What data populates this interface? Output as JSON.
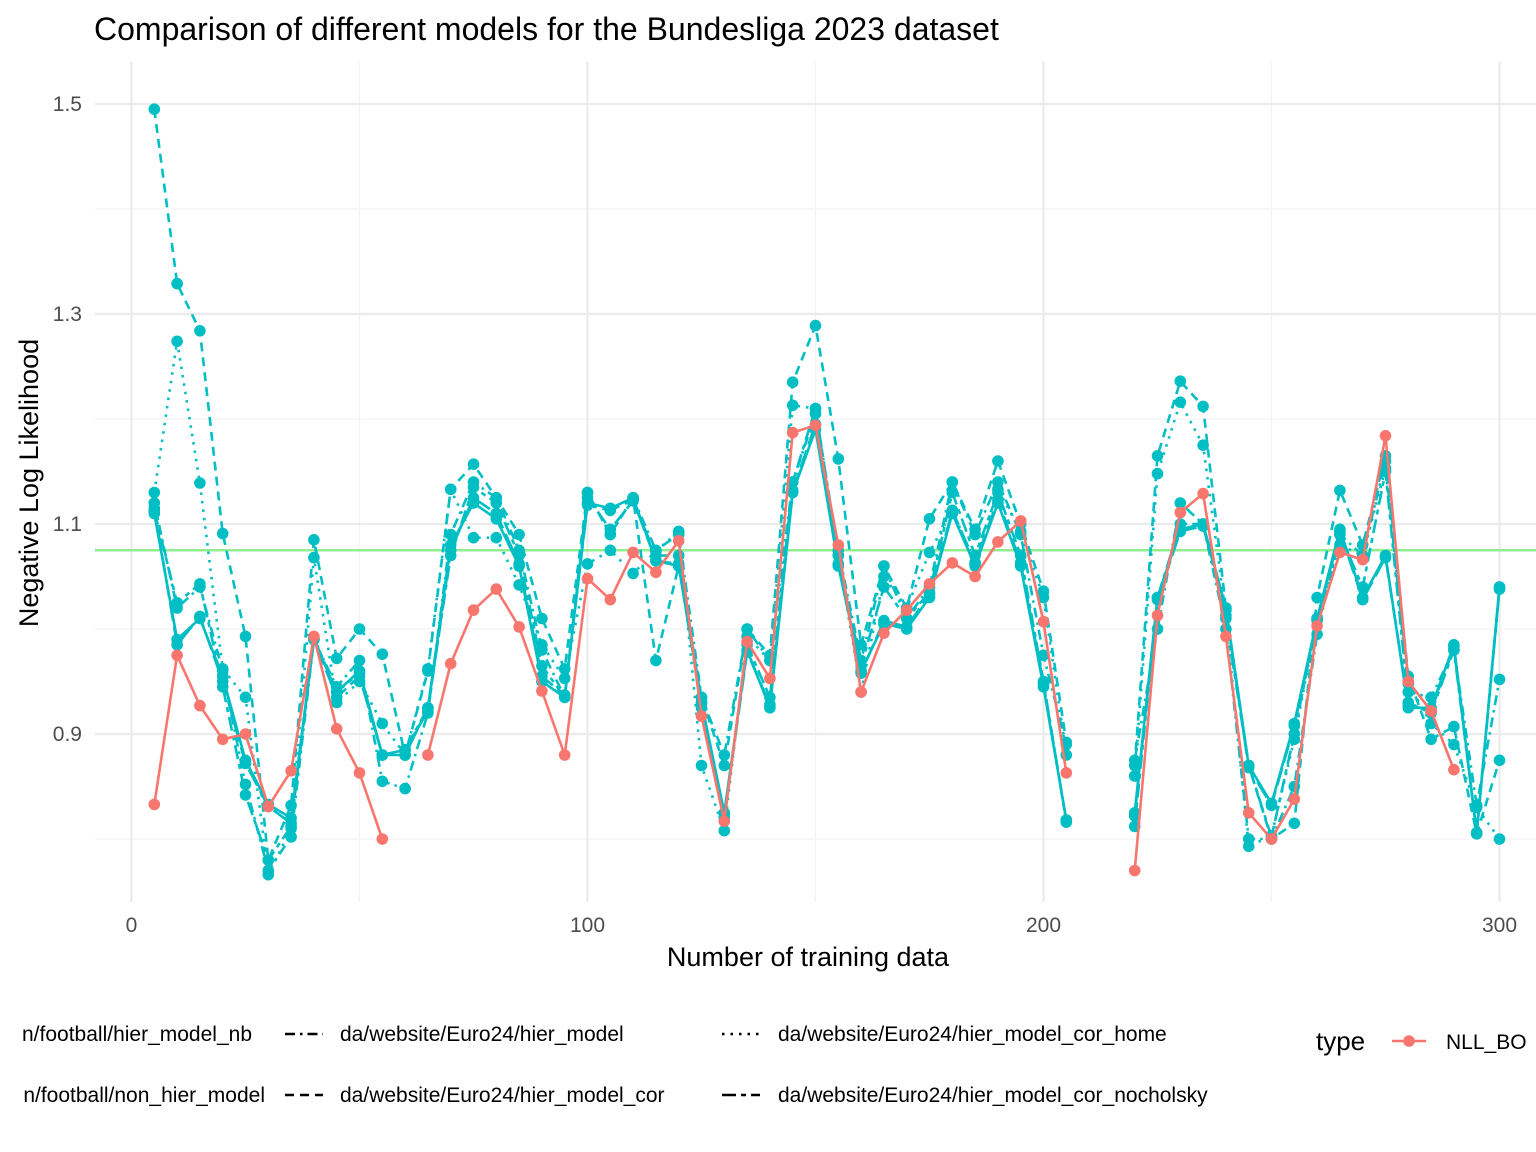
{
  "chart_data": {
    "type": "line",
    "title": "Comparison of different models for the Bundesliga 2023 dataset",
    "xlabel": "Number of training data",
    "ylabel": "Negative Log Likelihood",
    "xlim": [
      -8,
      308
    ],
    "ylim": [
      0.74,
      1.54
    ],
    "x_ticks": [
      0,
      100,
      200,
      300
    ],
    "x_tick_labels": [
      "0",
      "100",
      "200",
      "300"
    ],
    "y_ticks": [
      0.9,
      1.1,
      1.3,
      1.5
    ],
    "y_tick_labels": [
      "0.9",
      "1.1",
      "1.3",
      "1.5"
    ],
    "grid": true,
    "reference_line": {
      "y": 1.075,
      "color": "#90EE90"
    },
    "colors": {
      "NLL_BO": "#F8766D",
      "models": "#00BFC4"
    },
    "legend": {
      "position": "bottom",
      "type_title": "type",
      "type_entries": [
        "NLL_BO"
      ],
      "linetype_entries": [
        {
          "label": "n/football/hier_model_nb",
          "dash": "longdash"
        },
        {
          "label": "n/football/non_hier_model",
          "dash": "solid-short"
        },
        {
          "label": "da/website/Euro24/hier_model",
          "dash": "dashdot"
        },
        {
          "label": "da/website/Euro24/hier_model_cor",
          "dash": "dashed"
        },
        {
          "label": "da/website/Euro24/hier_model_cor_home",
          "dash": "dotted"
        },
        {
          "label": "da/website/Euro24/hier_model_cor_nocholsky",
          "dash": "twodash"
        }
      ]
    },
    "series": [
      {
        "name": "NLL_BO",
        "color": "#F8766D",
        "dash": "solid",
        "segments": [
          {
            "x": [
              5,
              10,
              15,
              20,
              25,
              30,
              35,
              40,
              45,
              50,
              55
            ],
            "y": [
              0.833,
              0.975,
              0.927,
              0.895,
              0.9,
              0.831,
              0.865,
              0.993,
              0.905,
              0.863,
              0.8
            ]
          },
          {
            "x": [
              65,
              70,
              75,
              80,
              85,
              90,
              95,
              100,
              105,
              110,
              115,
              120,
              125,
              130,
              135,
              140,
              145,
              150,
              155,
              160,
              165,
              170,
              175,
              180,
              185,
              190,
              195,
              200,
              205
            ],
            "y": [
              0.88,
              0.967,
              1.018,
              1.038,
              1.002,
              0.941,
              0.88,
              1.048,
              1.028,
              1.073,
              1.054,
              1.084,
              0.917,
              0.817,
              0.988,
              0.953,
              1.187,
              1.194,
              1.08,
              0.94,
              0.996,
              1.018,
              1.043,
              1.063,
              1.05,
              1.083,
              1.103,
              1.007,
              0.863
            ]
          },
          {
            "x": [
              220,
              225,
              230,
              235,
              240,
              245,
              250,
              255,
              260,
              265,
              270,
              275,
              280,
              285,
              290
            ],
            "y": [
              0.77,
              1.013,
              1.111,
              1.129,
              0.993,
              0.825,
              0.8,
              0.838,
              1.003,
              1.073,
              1.066,
              1.184,
              0.95,
              0.922,
              0.866
            ]
          }
        ]
      },
      {
        "name": "n/football/non_hier_model",
        "color": "#00BFC4",
        "dash": "solid",
        "segments": [
          {
            "x": [
              5,
              10,
              15,
              20,
              25,
              30,
              35,
              40,
              45,
              50,
              55,
              60,
              65,
              70,
              75,
              80,
              85,
              90,
              95,
              100,
              105,
              110,
              115,
              120,
              125,
              130,
              135,
              140,
              145,
              150,
              155,
              160,
              165,
              170,
              175,
              180,
              185,
              190,
              195,
              200,
              205
            ],
            "y": [
              1.11,
              0.99,
              1.01,
              0.955,
              0.875,
              0.833,
              0.82,
              0.99,
              0.94,
              0.96,
              0.88,
              0.88,
              0.925,
              1.08,
              1.12,
              1.105,
              1.06,
              0.95,
              0.935,
              1.12,
              1.115,
              1.125,
              1.065,
              1.06,
              0.93,
              0.825,
              0.98,
              0.925,
              1.13,
              1.19,
              1.06,
              0.96,
              1.005,
              1.0,
              1.03,
              1.11,
              1.06,
              1.12,
              1.06,
              0.945,
              0.818
            ]
          },
          {
            "x": [
              220,
              225,
              230,
              235,
              240,
              245,
              250,
              255,
              260,
              265,
              270,
              275,
              280,
              285,
              290,
              295,
              300
            ],
            "y": [
              0.825,
              1.03,
              1.095,
              1.1,
              1.02,
              0.87,
              0.834,
              0.91,
              1.01,
              1.095,
              1.03,
              1.07,
              0.925,
              0.925,
              0.985,
              0.805,
              1.04
            ]
          }
        ]
      },
      {
        "name": "n/football/hier_model_nb",
        "color": "#00BFC4",
        "dash": "longdash",
        "segments": [
          {
            "x": [
              5,
              10,
              15,
              20,
              25,
              30,
              35,
              40,
              45,
              50,
              55,
              60,
              65,
              70,
              75,
              80,
              85,
              90,
              95,
              100,
              105,
              110,
              115,
              120,
              125,
              130,
              135,
              140,
              145,
              150,
              155,
              160,
              165,
              170,
              175,
              180,
              185,
              190,
              195,
              200,
              205
            ],
            "y": [
              1.115,
              0.985,
              1.012,
              0.95,
              0.872,
              0.831,
              0.815,
              0.99,
              0.935,
              0.955,
              0.88,
              0.885,
              0.922,
              1.075,
              1.125,
              1.11,
              1.062,
              0.955,
              0.937,
              1.118,
              1.113,
              1.123,
              1.065,
              1.062,
              0.925,
              0.822,
              0.978,
              0.928,
              1.132,
              1.195,
              1.062,
              0.958,
              1.008,
              1.002,
              1.033,
              1.113,
              1.063,
              1.123,
              1.063,
              0.948,
              0.818
            ]
          },
          {
            "x": [
              220,
              225,
              230,
              235,
              240,
              245,
              250,
              255,
              260,
              265,
              270,
              275,
              280,
              285,
              290,
              295,
              300
            ],
            "y": [
              0.822,
              1.028,
              1.093,
              1.098,
              1.018,
              0.868,
              0.832,
              0.908,
              1.008,
              1.093,
              1.028,
              1.068,
              0.928,
              0.922,
              0.983,
              0.806,
              1.038
            ]
          }
        ]
      },
      {
        "name": "da/website/Euro24/hier_model",
        "color": "#00BFC4",
        "dash": "dashdot",
        "segments": [
          {
            "x": [
              5,
              10,
              15,
              20,
              25,
              30,
              35,
              40,
              45,
              50,
              55,
              60,
              65,
              70,
              75,
              80,
              85,
              90,
              95,
              100,
              105,
              110,
              115,
              120,
              125,
              130,
              135,
              140,
              145,
              150,
              155,
              160,
              165,
              170,
              175,
              180,
              185,
              190,
              195,
              200,
              205
            ],
            "y": [
              1.12,
              1.02,
              1.04,
              0.96,
              0.852,
              0.77,
              0.802,
              0.99,
              0.945,
              0.97,
              0.855,
              0.848,
              0.92,
              1.09,
              1.14,
              1.125,
              1.075,
              0.98,
              0.935,
              1.13,
              1.09,
              1.125,
              1.075,
              1.09,
              0.935,
              0.88,
              1.0,
              0.97,
              1.14,
              1.205,
              1.075,
              0.97,
              1.06,
              1.01,
              1.04,
              1.14,
              1.09,
              1.14,
              1.09,
              0.975,
              0.89
            ]
          },
          {
            "x": [
              220,
              225,
              230,
              235,
              240,
              245,
              250,
              255,
              260,
              265,
              270,
              275,
              280,
              285,
              290,
              295,
              300
            ],
            "y": [
              0.875,
              1.0,
              1.12,
              1.1,
              1.0,
              0.8,
              0.8,
              0.85,
              0.995,
              1.09,
              1.07,
              1.16,
              0.94,
              0.935,
              0.98,
              0.832,
              0.952
            ]
          }
        ]
      },
      {
        "name": "da/website/Euro24/hier_model_cor",
        "color": "#00BFC4",
        "dash": "dashed",
        "segments": [
          {
            "x": [
              5,
              10,
              15,
              20,
              25,
              30,
              35,
              40,
              45,
              50,
              55,
              60,
              65,
              70,
              75,
              80,
              85,
              90,
              95,
              100,
              105,
              110,
              115,
              120,
              125,
              130,
              135,
              140,
              145,
              150,
              155,
              160,
              165,
              170,
              175,
              180,
              185,
              190,
              195,
              200,
              205
            ],
            "y": [
              1.495,
              1.329,
              1.284,
              1.091,
              0.993,
              0.78,
              0.832,
              1.085,
              0.972,
              1.0,
              0.976,
              0.88,
              0.96,
              1.133,
              1.157,
              1.125,
              1.09,
              1.01,
              0.962,
              1.13,
              1.09,
              1.125,
              0.97,
              1.06,
              0.935,
              0.87,
              1.0,
              0.975,
              1.235,
              1.289,
              1.162,
              0.985,
              1.06,
              1.02,
              1.105,
              1.14,
              1.095,
              1.16,
              1.1,
              1.036,
              0.892
            ]
          },
          {
            "x": [
              220,
              225,
              230,
              235,
              240,
              245,
              250,
              255,
              260,
              265,
              270,
              275,
              280,
              285,
              290,
              295,
              300
            ],
            "y": [
              0.87,
              1.165,
              1.236,
              1.212,
              1.02,
              0.87,
              0.8,
              0.815,
              1.03,
              1.132,
              1.08,
              1.165,
              0.955,
              0.895,
              0.907,
              0.805,
              0.875
            ]
          }
        ]
      },
      {
        "name": "da/website/Euro24/hier_model_cor_home",
        "color": "#00BFC4",
        "dash": "dotted",
        "segments": [
          {
            "x": [
              5,
              10,
              15,
              20,
              25,
              30,
              35,
              40,
              45,
              50,
              55,
              60,
              65,
              70,
              75,
              80,
              85,
              90,
              95,
              100,
              105,
              110,
              115,
              120,
              125,
              130,
              135,
              140,
              145,
              150,
              155,
              160,
              165,
              170,
              175,
              180,
              185,
              190,
              195,
              200,
              205
            ],
            "y": [
              1.13,
              1.274,
              1.139,
              0.962,
              0.935,
              0.766,
              0.81,
              1.068,
              0.93,
              0.95,
              0.91,
              0.88,
              0.962,
              1.133,
              1.087,
              1.087,
              1.042,
              0.985,
              0.953,
              1.062,
              1.075,
              1.053,
              1.074,
              1.093,
              0.87,
              0.808,
              0.993,
              0.97,
              1.213,
              1.21,
              1.07,
              0.94,
              1.05,
              1.02,
              1.073,
              1.113,
              1.063,
              1.133,
              1.093,
              1.03,
              0.88
            ]
          },
          {
            "x": [
              220,
              225,
              230,
              235,
              240,
              245,
              250,
              255,
              260,
              265,
              270,
              275,
              280,
              285,
              290,
              295,
              300
            ],
            "y": [
              0.86,
              1.148,
              1.216,
              1.175,
              1.013,
              0.793,
              0.803,
              0.895,
              1.01,
              1.08,
              1.07,
              1.153,
              0.948,
              0.91,
              0.89,
              0.83,
              0.8
            ]
          }
        ]
      },
      {
        "name": "da/website/Euro24/hier_model_cor_nocholsky",
        "color": "#00BFC4",
        "dash": "twodash",
        "segments": [
          {
            "x": [
              5,
              10,
              15,
              20,
              25,
              30,
              35,
              40,
              45,
              50,
              55,
              60,
              65,
              70,
              75,
              80,
              85,
              90,
              95,
              100,
              105,
              110,
              115,
              120,
              125,
              130,
              135,
              140,
              145,
              150,
              155,
              160,
              165,
              170,
              175,
              180,
              185,
              190,
              195,
              200,
              205
            ],
            "y": [
              1.113,
              1.025,
              1.043,
              0.945,
              0.842,
              0.78,
              0.812,
              0.992,
              0.94,
              0.958,
              0.88,
              0.885,
              0.925,
              1.07,
              1.135,
              1.12,
              1.07,
              0.965,
              0.935,
              1.125,
              1.095,
              1.122,
              1.07,
              1.07,
              0.93,
              0.82,
              0.985,
              0.935,
              1.14,
              1.21,
              1.07,
              0.965,
              1.04,
              1.01,
              1.035,
              1.13,
              1.07,
              1.13,
              1.07,
              0.95,
              0.816
            ]
          },
          {
            "x": [
              220,
              225,
              230,
              235,
              240,
              245,
              250,
              255,
              260,
              265,
              270,
              275,
              280,
              285,
              290,
              295,
              300
            ],
            "y": [
              0.812,
              1.03,
              1.1,
              1.1,
              1.01,
              0.87,
              0.802,
              0.9,
              1.01,
              1.09,
              1.04,
              1.15,
              0.93,
              0.92,
              0.98,
              0.806,
              1.04
            ]
          }
        ]
      }
    ]
  }
}
